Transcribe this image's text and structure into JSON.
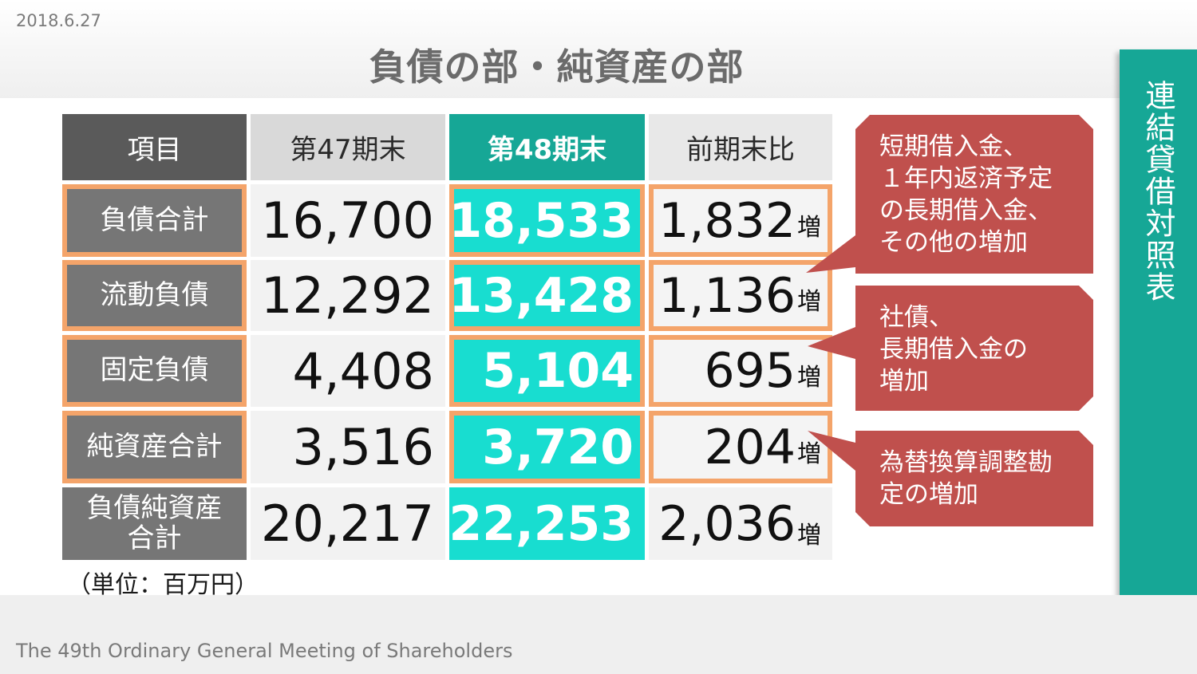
{
  "header": {
    "date": "2018.6.27",
    "title": "負債の部・純資産の部"
  },
  "side_label": "連結貸借対照表",
  "table": {
    "headers": [
      "項目",
      "第47期末",
      "第48期末",
      "前期末比"
    ],
    "rows": [
      {
        "label": "負債合計",
        "v47": "16,700",
        "v48": "18,533",
        "diff": "1,832",
        "diff_suffix": "増"
      },
      {
        "label": "流動負債",
        "v47": "12,292",
        "v48": "13,428",
        "diff": "1,136",
        "diff_suffix": "増"
      },
      {
        "label": "固定負債",
        "v47": "4,408",
        "v48": "5,104",
        "diff": "695",
        "diff_suffix": "増"
      },
      {
        "label": "純資産合計",
        "v47": "3,516",
        "v48": "3,720",
        "diff": "204",
        "diff_suffix": "増"
      },
      {
        "label": "負債純資産合計",
        "label_line1": "負債純資産",
        "label_line2": "合計",
        "v47": "20,217",
        "v48": "22,253",
        "diff": "2,036",
        "diff_suffix": "増"
      }
    ],
    "unit_note": "（単位：百万円）"
  },
  "callouts": [
    {
      "lines": [
        "短期借入金、",
        "１年内返済予定",
        "の長期借入金、",
        "その他の増加"
      ]
    },
    {
      "lines": [
        "社債、",
        "長期借入金の",
        "増加"
      ]
    },
    {
      "lines": [
        "為替換算調整勘",
        "定の増加"
      ]
    }
  ],
  "footer": {
    "text": "The 49th Ordinary General Meeting of Shareholders"
  },
  "colors": {
    "accent_teal": "#16a796",
    "highlight_cyan": "#18ddd0",
    "highlight_border": "#f4a46a",
    "callout_red": "#c0504d",
    "label_gray": "#767676"
  }
}
